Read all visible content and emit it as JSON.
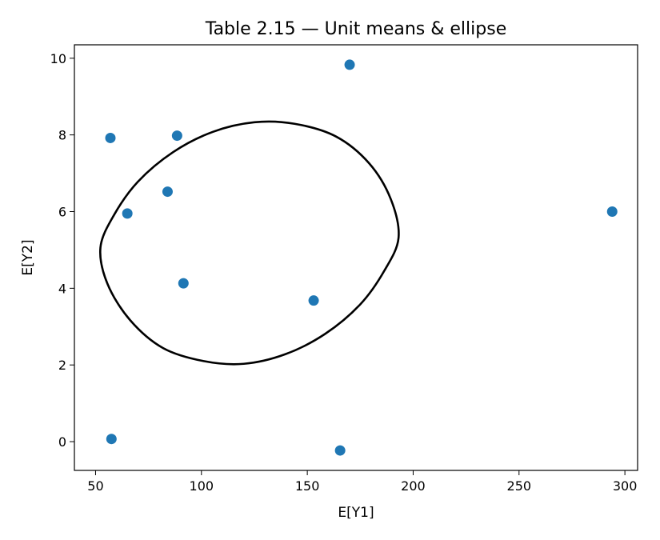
{
  "chart_data": {
    "type": "scatter",
    "title": "Table 2.15 — Unit means & ellipse",
    "xlabel": "E[Y1]",
    "ylabel": "E[Y2]",
    "xlim": [
      40,
      306
    ],
    "ylim": [
      -0.75,
      10.35
    ],
    "xticks": [
      50,
      100,
      150,
      200,
      250,
      300
    ],
    "yticks": [
      0,
      2,
      4,
      6,
      8,
      10
    ],
    "grid": false,
    "marker_color": "#1f77b4",
    "ellipse_color": "#000000",
    "points": [
      {
        "x": 57,
        "y": 7.92
      },
      {
        "x": 88.5,
        "y": 7.98
      },
      {
        "x": 84,
        "y": 6.52
      },
      {
        "x": 65,
        "y": 5.95
      },
      {
        "x": 91.5,
        "y": 4.13
      },
      {
        "x": 153,
        "y": 3.68
      },
      {
        "x": 170,
        "y": 9.83
      },
      {
        "x": 294,
        "y": 6.0
      },
      {
        "x": 57.5,
        "y": 0.07
      },
      {
        "x": 165.5,
        "y": -0.23
      }
    ],
    "ellipse": [
      {
        "x": 193.1,
        "y": 5.32
      },
      {
        "x": 189.4,
        "y": 6.33
      },
      {
        "x": 179.2,
        "y": 7.26
      },
      {
        "x": 163.5,
        "y": 7.96
      },
      {
        "x": 144.0,
        "y": 8.29
      },
      {
        "x": 125.0,
        "y": 8.33
      },
      {
        "x": 105.4,
        "y": 8.08
      },
      {
        "x": 86.6,
        "y": 7.55
      },
      {
        "x": 70.0,
        "y": 6.78
      },
      {
        "x": 58.7,
        "y": 5.91
      },
      {
        "x": 52.3,
        "y": 5.06
      },
      {
        "x": 55.6,
        "y": 4.12
      },
      {
        "x": 66.3,
        "y": 3.17
      },
      {
        "x": 81.9,
        "y": 2.44
      },
      {
        "x": 101.1,
        "y": 2.1
      },
      {
        "x": 120.0,
        "y": 2.03
      },
      {
        "x": 139.6,
        "y": 2.28
      },
      {
        "x": 158.4,
        "y": 2.81
      },
      {
        "x": 175.0,
        "y": 3.58
      },
      {
        "x": 186.3,
        "y": 4.45
      }
    ]
  }
}
